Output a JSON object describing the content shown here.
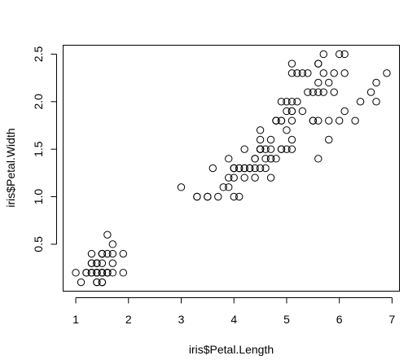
{
  "chart_data": {
    "type": "scatter",
    "title": "",
    "xlabel": "iris$Petal.Length",
    "ylabel": "iris$Petal.Width",
    "xlim": [
      0.76,
      7.14
    ],
    "ylim": [
      0.006,
      2.594
    ],
    "xticks": [
      1,
      2,
      3,
      4,
      5,
      6,
      7
    ],
    "xtick_labels": [
      "1",
      "2",
      "3",
      "4",
      "5",
      "6",
      "7"
    ],
    "yticks": [
      0.5,
      1.0,
      1.5,
      2.0,
      2.5
    ],
    "ytick_labels": [
      "0.5",
      "1.0",
      "1.5",
      "2.0",
      "2.5"
    ],
    "grid": false,
    "marker": "open-circle",
    "x": [
      1.4,
      1.4,
      1.3,
      1.5,
      1.4,
      1.7,
      1.4,
      1.5,
      1.4,
      1.5,
      1.5,
      1.6,
      1.4,
      1.1,
      1.2,
      1.5,
      1.3,
      1.4,
      1.7,
      1.5,
      1.7,
      1.5,
      1.0,
      1.7,
      1.9,
      1.6,
      1.6,
      1.5,
      1.4,
      1.6,
      1.6,
      1.5,
      1.5,
      1.4,
      1.5,
      1.2,
      1.3,
      1.4,
      1.3,
      1.5,
      1.3,
      1.3,
      1.3,
      1.6,
      1.9,
      1.4,
      1.6,
      1.4,
      1.5,
      1.4,
      4.7,
      4.5,
      4.9,
      4.0,
      4.6,
      4.5,
      4.7,
      3.3,
      4.6,
      3.9,
      3.5,
      4.2,
      4.0,
      4.7,
      3.6,
      4.4,
      4.5,
      4.1,
      4.5,
      3.9,
      4.8,
      4.0,
      4.9,
      4.7,
      4.3,
      4.4,
      4.8,
      5.0,
      4.5,
      3.5,
      3.8,
      3.7,
      3.9,
      5.1,
      4.5,
      4.5,
      4.7,
      4.4,
      4.1,
      4.0,
      4.4,
      4.6,
      4.0,
      3.3,
      4.2,
      4.2,
      4.2,
      4.3,
      3.0,
      4.1,
      6.0,
      5.1,
      5.9,
      5.6,
      5.8,
      6.6,
      4.5,
      6.3,
      5.8,
      6.1,
      5.1,
      5.3,
      5.5,
      5.0,
      5.1,
      5.3,
      5.5,
      6.7,
      6.9,
      5.0,
      5.7,
      4.9,
      6.7,
      4.9,
      5.7,
      6.0,
      4.8,
      4.9,
      5.6,
      5.8,
      6.1,
      6.4,
      5.6,
      5.1,
      5.6,
      6.1,
      5.6,
      5.5,
      4.8,
      5.4,
      5.6,
      5.1,
      5.1,
      5.9,
      5.7,
      5.2,
      5.0,
      5.2,
      5.4,
      5.1
    ],
    "y": [
      0.2,
      0.2,
      0.2,
      0.2,
      0.2,
      0.4,
      0.3,
      0.2,
      0.2,
      0.1,
      0.2,
      0.2,
      0.1,
      0.1,
      0.2,
      0.4,
      0.4,
      0.3,
      0.3,
      0.3,
      0.2,
      0.4,
      0.2,
      0.5,
      0.2,
      0.2,
      0.4,
      0.2,
      0.2,
      0.2,
      0.2,
      0.4,
      0.1,
      0.2,
      0.2,
      0.2,
      0.2,
      0.1,
      0.2,
      0.2,
      0.3,
      0.3,
      0.2,
      0.6,
      0.4,
      0.3,
      0.2,
      0.2,
      0.2,
      0.2,
      1.4,
      1.5,
      1.5,
      1.3,
      1.5,
      1.3,
      1.6,
      1.0,
      1.3,
      1.4,
      1.0,
      1.5,
      1.0,
      1.4,
      1.3,
      1.4,
      1.5,
      1.0,
      1.5,
      1.1,
      1.8,
      1.3,
      1.5,
      1.2,
      1.3,
      1.4,
      1.4,
      1.7,
      1.5,
      1.0,
      1.1,
      1.0,
      1.2,
      1.6,
      1.5,
      1.6,
      1.5,
      1.3,
      1.3,
      1.3,
      1.2,
      1.4,
      1.2,
      1.0,
      1.3,
      1.2,
      1.3,
      1.3,
      1.1,
      1.3,
      2.5,
      1.9,
      2.1,
      1.8,
      2.2,
      2.1,
      1.7,
      1.8,
      1.8,
      2.5,
      2.0,
      1.9,
      2.1,
      2.0,
      2.4,
      2.3,
      1.8,
      2.2,
      2.3,
      1.5,
      2.3,
      2.0,
      2.0,
      1.8,
      2.1,
      1.8,
      1.8,
      1.8,
      2.1,
      1.6,
      1.9,
      2.0,
      2.2,
      1.5,
      1.4,
      2.3,
      2.4,
      1.8,
      1.8,
      2.1,
      2.4,
      2.3,
      1.9,
      2.3,
      2.5,
      2.3,
      1.9,
      2.0,
      2.3,
      1.8
    ]
  }
}
